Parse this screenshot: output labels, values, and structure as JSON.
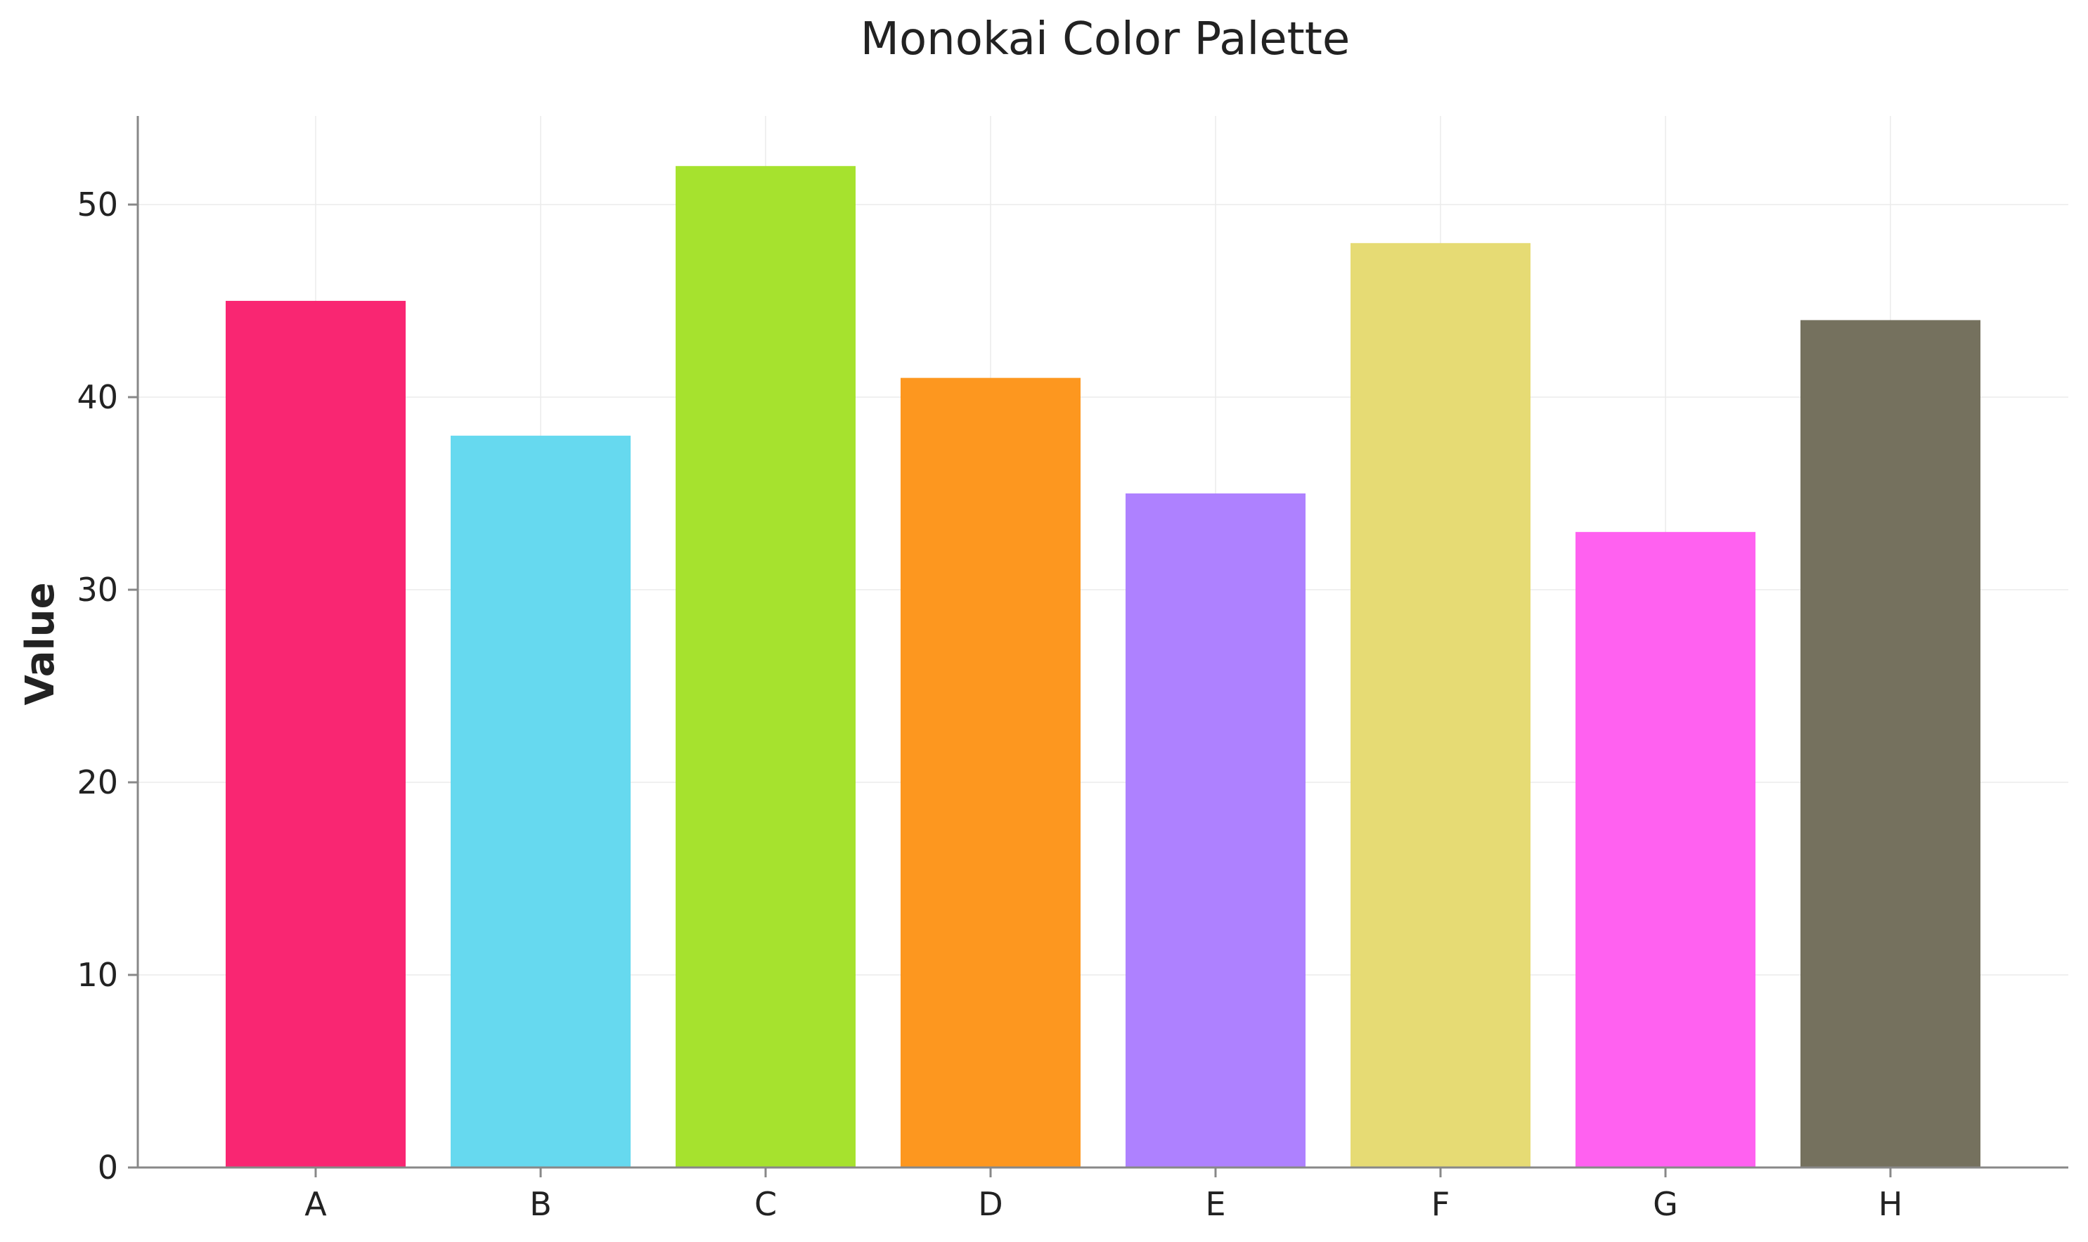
{
  "chart_data": {
    "type": "bar",
    "title": "Monokai Color Palette",
    "xlabel": "",
    "ylabel": "Value",
    "categories": [
      "A",
      "B",
      "C",
      "D",
      "E",
      "F",
      "G",
      "H"
    ],
    "values": [
      45,
      38,
      52,
      41,
      35,
      48,
      33,
      44
    ],
    "colors": [
      "#F92672",
      "#66D9EF",
      "#A6E22E",
      "#FD971F",
      "#AE81FF",
      "#E6DB74",
      "#FF61F0",
      "#75715E"
    ],
    "ylim": [
      0,
      54.6
    ],
    "yticks": [
      "0",
      "10",
      "20",
      "30",
      "40",
      "50"
    ],
    "grid": true,
    "legend": "none"
  }
}
